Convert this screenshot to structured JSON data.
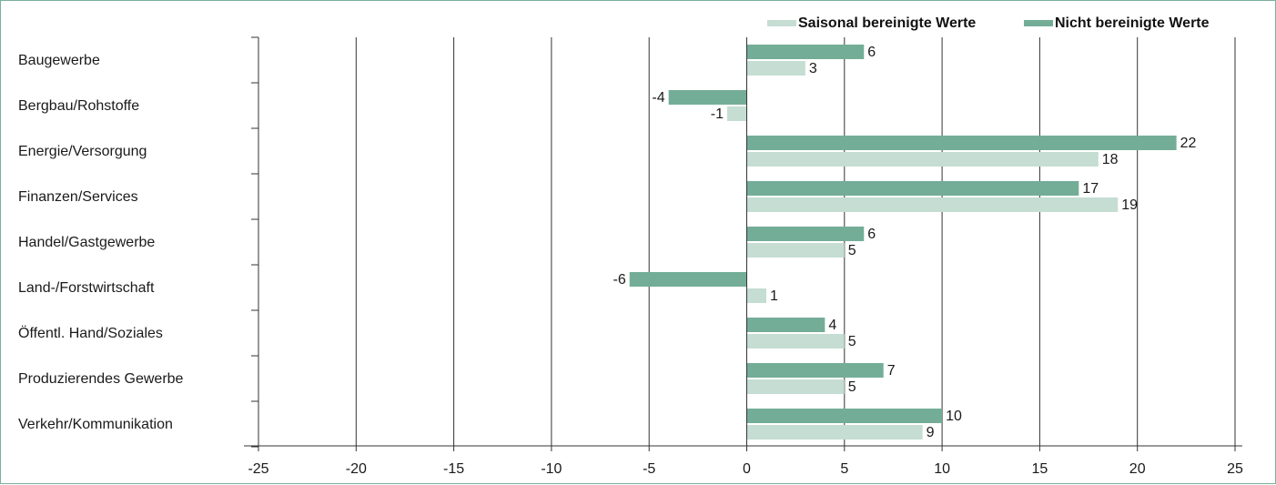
{
  "chart_data": {
    "type": "bar",
    "orientation": "horizontal",
    "title": "",
    "xlabel": "",
    "ylabel": "",
    "xlim": [
      -25,
      25
    ],
    "xticks": [
      -25,
      -20,
      -15,
      -10,
      -5,
      0,
      5,
      10,
      15,
      20,
      25
    ],
    "grid": "vertical",
    "legend_position": "top-right",
    "categories": [
      "Baugewerbe",
      "Bergbau/Rohstoffe",
      "Energie/Versorgung",
      "Finanzen/Services",
      "Handel/Gastgewerbe",
      "Land-/Forstwirtschaft",
      "Öffentl. Hand/Soziales",
      "Produzierendes Gewerbe",
      "Verkehr/Kommunikation"
    ],
    "series": [
      {
        "name": "Nicht bereinigte Werte",
        "color": "#73ad98",
        "values": [
          6,
          -4,
          22,
          17,
          6,
          -6,
          4,
          7,
          10
        ]
      },
      {
        "name": "Saisonal bereinigte Werte",
        "color": "#c5ddd3",
        "values": [
          3,
          -1,
          18,
          19,
          5,
          1,
          5,
          5,
          9
        ]
      }
    ],
    "legend_order": [
      "Saisonal bereinigte Werte",
      "Nicht bereinigte Werte"
    ]
  }
}
